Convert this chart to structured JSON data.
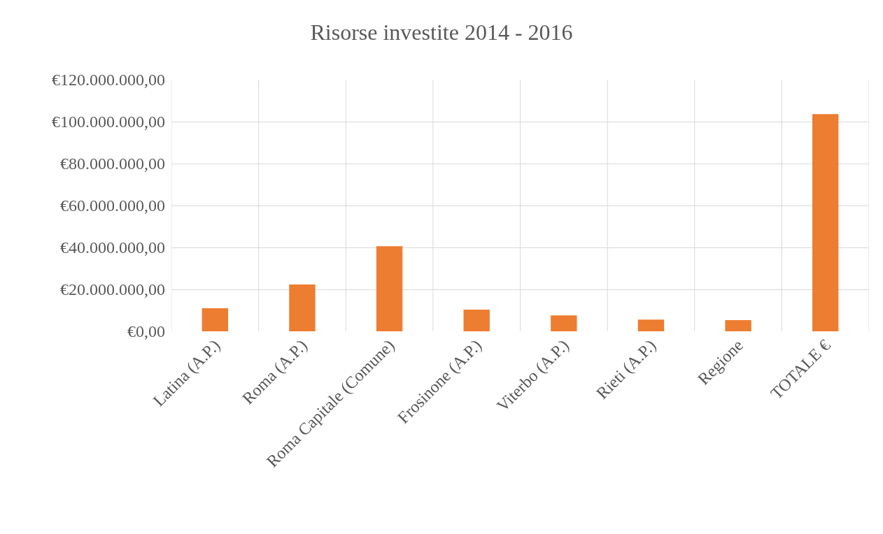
{
  "chart_data": {
    "type": "bar",
    "title": "Risorse investite 2014 - 2016",
    "categories": [
      "Latina (A.P.)",
      "Roma (A.P.)",
      "Roma Capitale (Comune)",
      "Frosinone (A.P.)",
      "Viterbo (A.P.)",
      "Rieti (A.P.)",
      "Regione",
      "TOTALE €"
    ],
    "values": [
      11000000,
      22300000,
      40600000,
      10300000,
      7600000,
      5600000,
      5300000,
      103600000
    ],
    "color": "#ed7d31",
    "ylim": [
      0,
      120000000
    ],
    "yticks": [
      {
        "value": 0,
        "label": "€0,00"
      },
      {
        "value": 20000000,
        "label": "€20.000.000,00"
      },
      {
        "value": 40000000,
        "label": "€40.000.000,00"
      },
      {
        "value": 60000000,
        "label": "€60.000.000,00"
      },
      {
        "value": 80000000,
        "label": "€80.000.000,00"
      },
      {
        "value": 100000000,
        "label": "€100.000.000,00"
      },
      {
        "value": 120000000,
        "label": "€120.000.000,00"
      }
    ],
    "grid": true
  }
}
